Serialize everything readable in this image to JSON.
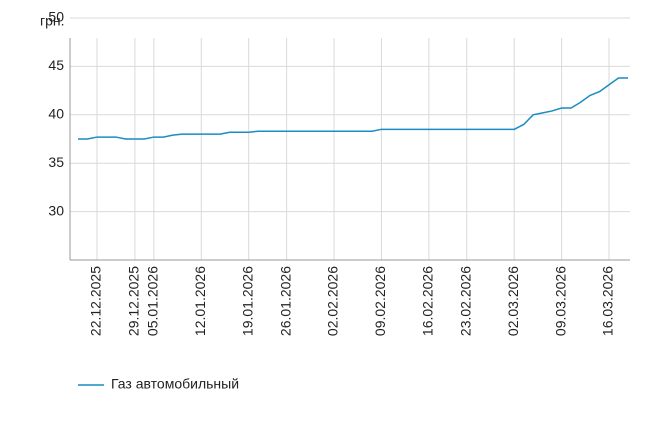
{
  "chart_data": {
    "type": "line",
    "y_label": "грн.",
    "categories": [
      null,
      null,
      "22.12.2025",
      null,
      null,
      null,
      "29.12.2025",
      null,
      "05.01.2026",
      null,
      null,
      null,
      null,
      "12.01.2026",
      null,
      null,
      null,
      null,
      "19.01.2026",
      null,
      null,
      null,
      "26.01.2026",
      null,
      null,
      null,
      null,
      "02.02.2026",
      null,
      null,
      null,
      null,
      "09.02.2026",
      null,
      null,
      null,
      null,
      "16.02.2026",
      null,
      null,
      null,
      "23.02.2026",
      null,
      null,
      null,
      null,
      "02.03.2026",
      null,
      null,
      null,
      null,
      "09.03.2026",
      null,
      null,
      null,
      null,
      "16.03.2026",
      null,
      null
    ],
    "series": [
      {
        "name": "Газ автомобильный",
        "color": "#1a8cc0",
        "values": [
          37.5,
          37.5,
          37.7,
          37.7,
          37.7,
          37.5,
          37.5,
          37.5,
          37.7,
          37.7,
          37.9,
          38.0,
          38.0,
          38.0,
          38.0,
          38.0,
          38.2,
          38.2,
          38.2,
          38.3,
          38.3,
          38.3,
          38.3,
          38.3,
          38.3,
          38.3,
          38.3,
          38.3,
          38.3,
          38.3,
          38.3,
          38.3,
          38.5,
          38.5,
          38.5,
          38.5,
          38.5,
          38.5,
          38.5,
          38.5,
          38.5,
          38.5,
          38.5,
          38.5,
          38.5,
          38.5,
          38.5,
          39.0,
          40.0,
          40.2,
          40.4,
          40.7,
          40.7,
          41.3,
          42.0,
          42.4,
          43.1,
          43.8,
          43.8
        ]
      }
    ],
    "ylim": [
      25,
      50
    ],
    "yticks": [
      30,
      35,
      40,
      45,
      50
    ],
    "grid": true
  }
}
